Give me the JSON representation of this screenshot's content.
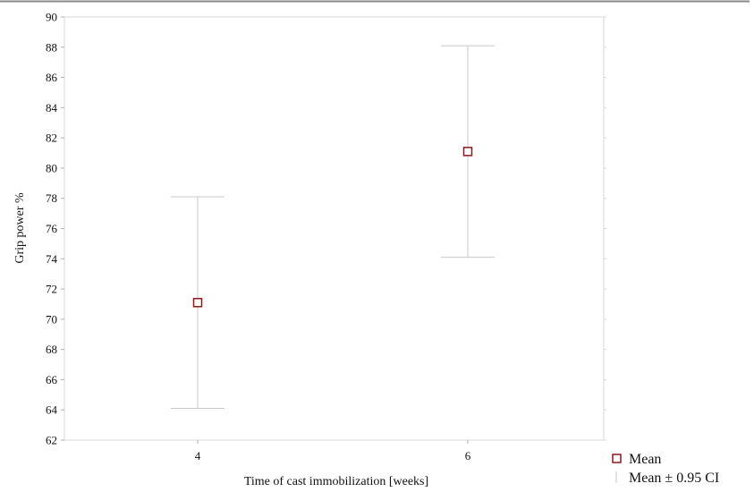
{
  "chart_data": {
    "type": "scatter",
    "xlabel": "Time of cast immobilization [weeks]",
    "ylabel": "Grip power %",
    "ylim": [
      62,
      90
    ],
    "yticks": [
      62,
      64,
      66,
      68,
      70,
      72,
      74,
      76,
      78,
      80,
      82,
      84,
      86,
      88,
      90
    ],
    "categories": [
      "4",
      "6"
    ],
    "series": [
      {
        "name": "Mean",
        "values": [
          71.1,
          81.1
        ],
        "ci_lower": [
          64.1,
          74.1
        ],
        "ci_upper": [
          78.1,
          88.1
        ]
      }
    ],
    "legend": {
      "placement": "bottom-right",
      "entries": [
        "Mean",
        "Mean ± 0.95 CI"
      ]
    },
    "grid": false,
    "colors": {
      "marker": "#8b1a1a",
      "error_bar": "#c8c8c8",
      "axis": "#b0b0b0"
    }
  }
}
